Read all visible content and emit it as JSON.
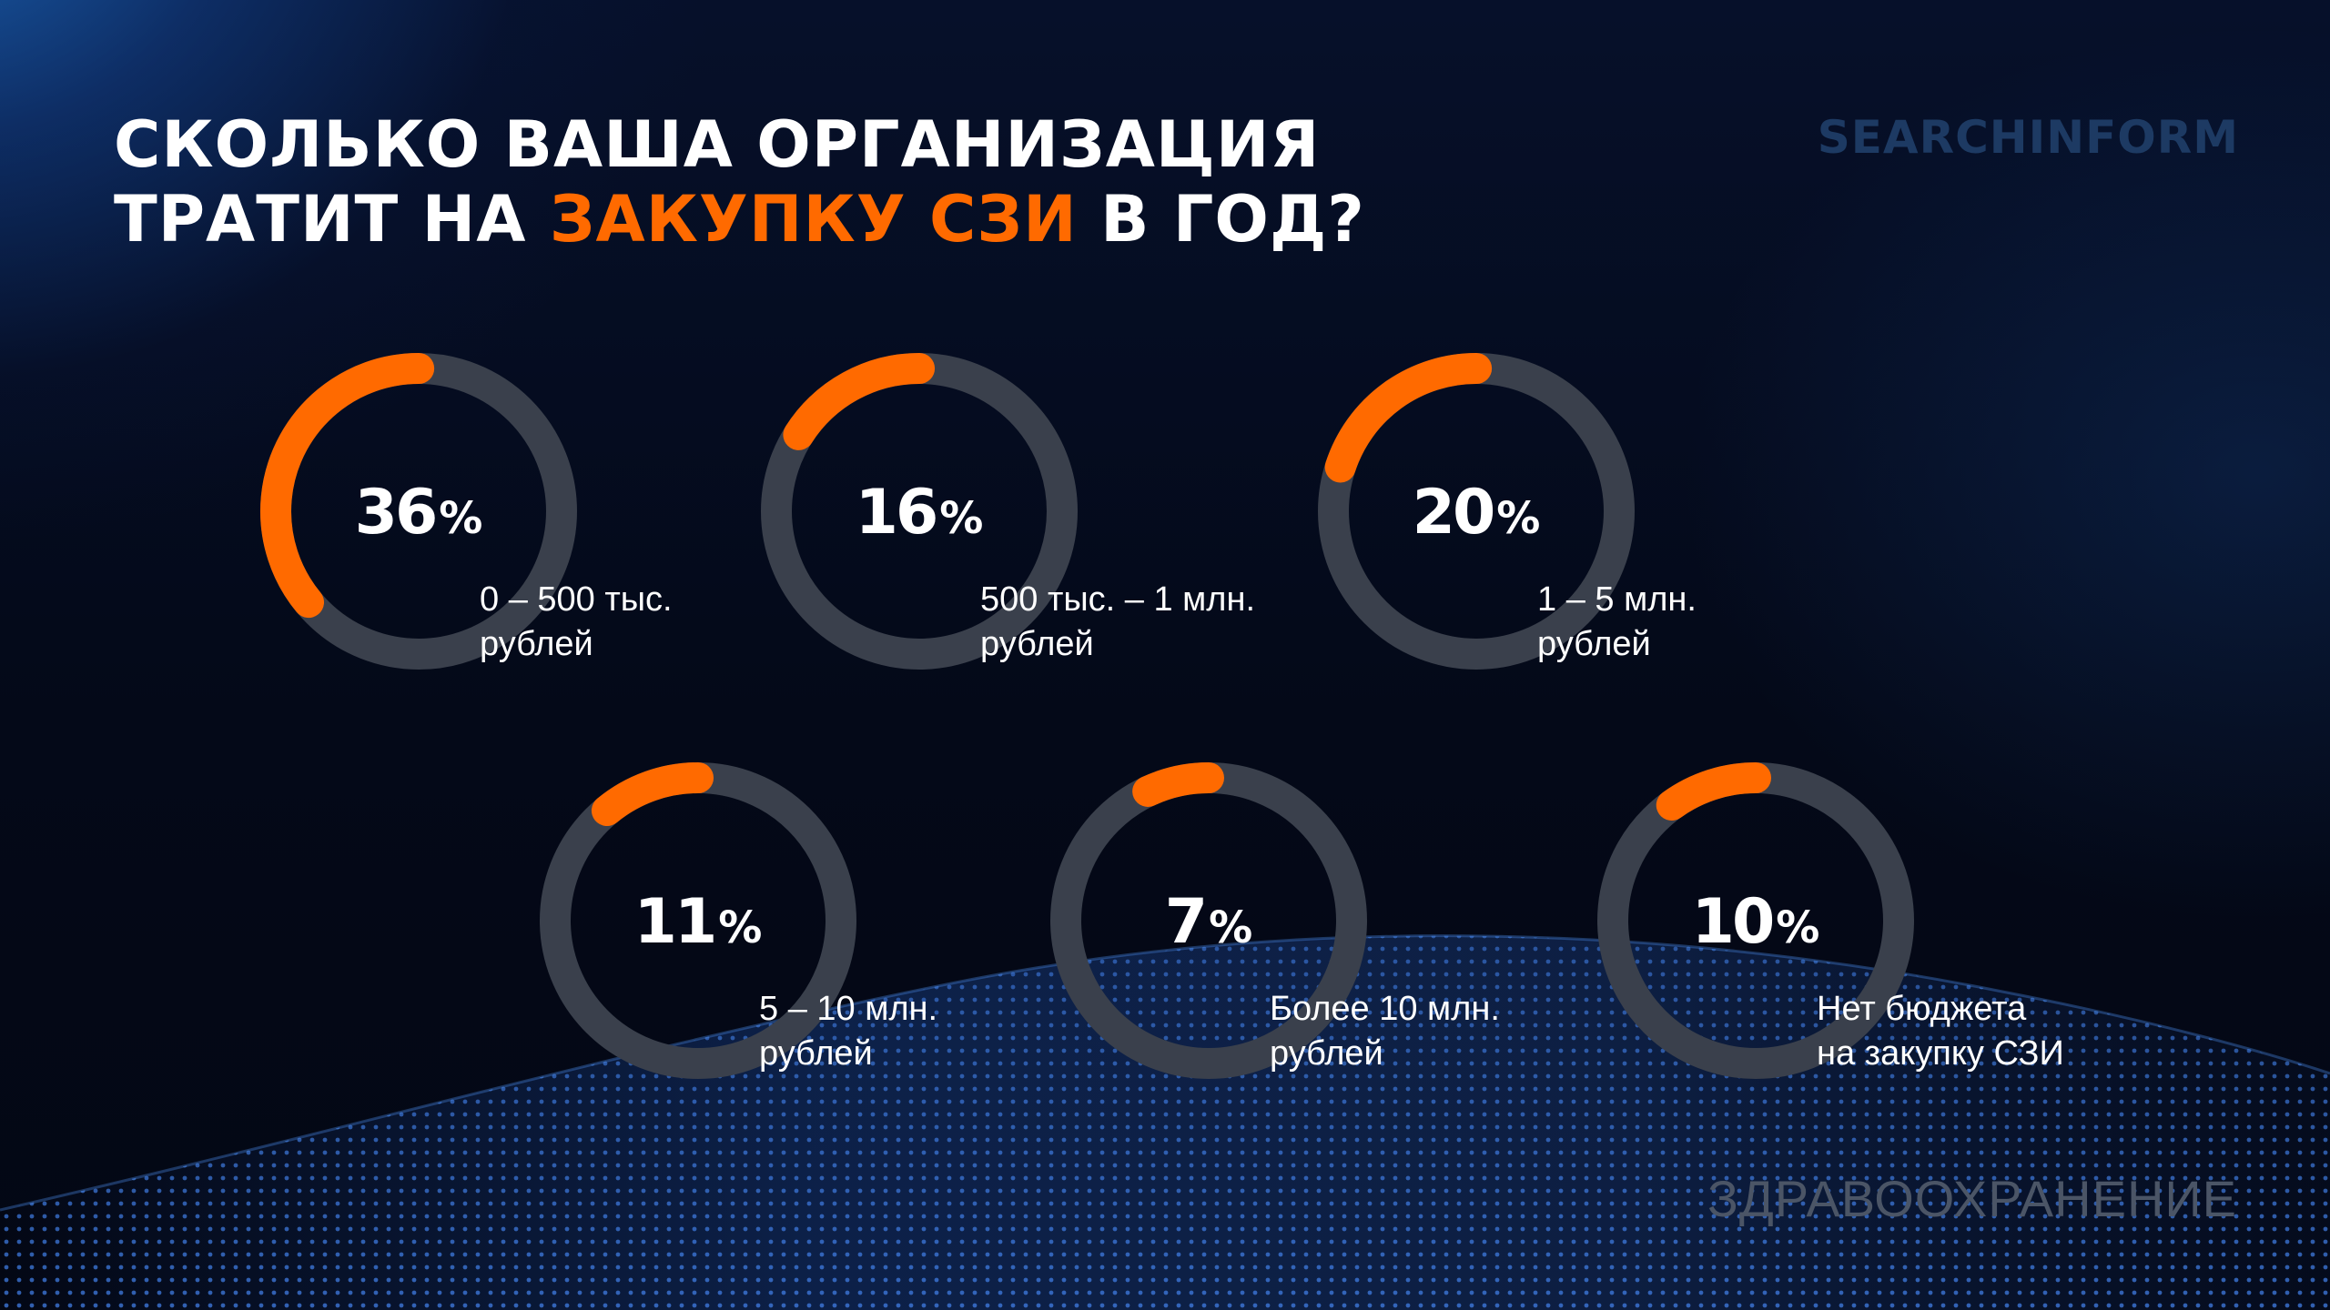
{
  "title": {
    "line1": "СКОЛЬКО ВАША ОРГАНИЗАЦИЯ",
    "line2_before": "ТРАТИТ НА ",
    "line2_accent": "ЗАКУПКУ СЗИ",
    "line2_after": " В ГОД?"
  },
  "logo": "SEARCHINFORM",
  "footer": "ЗДРАВООХРАНЕНИЕ",
  "colors": {
    "accent": "#ff6a00",
    "track": "#3a404c",
    "text": "#ffffff",
    "logo": "#1d3a63",
    "footer": "#4b5566"
  },
  "chart_data": {
    "type": "donut",
    "unit": "%",
    "categories": [
      "0 – 500 тыс. рублей",
      "500 тыс. – 1 млн. рублей",
      "1 – 5 млн. рублей",
      "5 – 10 млн. рублей",
      "Более 10 млн. рублей",
      "Нет бюджета на закупку СЗИ"
    ],
    "values": [
      36,
      16,
      20,
      11,
      7,
      10
    ],
    "items": [
      {
        "value": 36,
        "label_line1": "0 – 500 тыс.",
        "label_line2": "рублей"
      },
      {
        "value": 16,
        "label_line1": "500 тыс. – 1 млн.",
        "label_line2": "рублей"
      },
      {
        "value": 20,
        "label_line1": "1 – 5 млн.",
        "label_line2": "рублей"
      },
      {
        "value": 11,
        "label_line1": "5 – 10 млн.",
        "label_line2": "рублей"
      },
      {
        "value": 7,
        "label_line1": "Более 10 млн.",
        "label_line2": "рублей"
      },
      {
        "value": 10,
        "label_line1": "Нет бюджета",
        "label_line2": "на закупку СЗИ"
      }
    ]
  }
}
